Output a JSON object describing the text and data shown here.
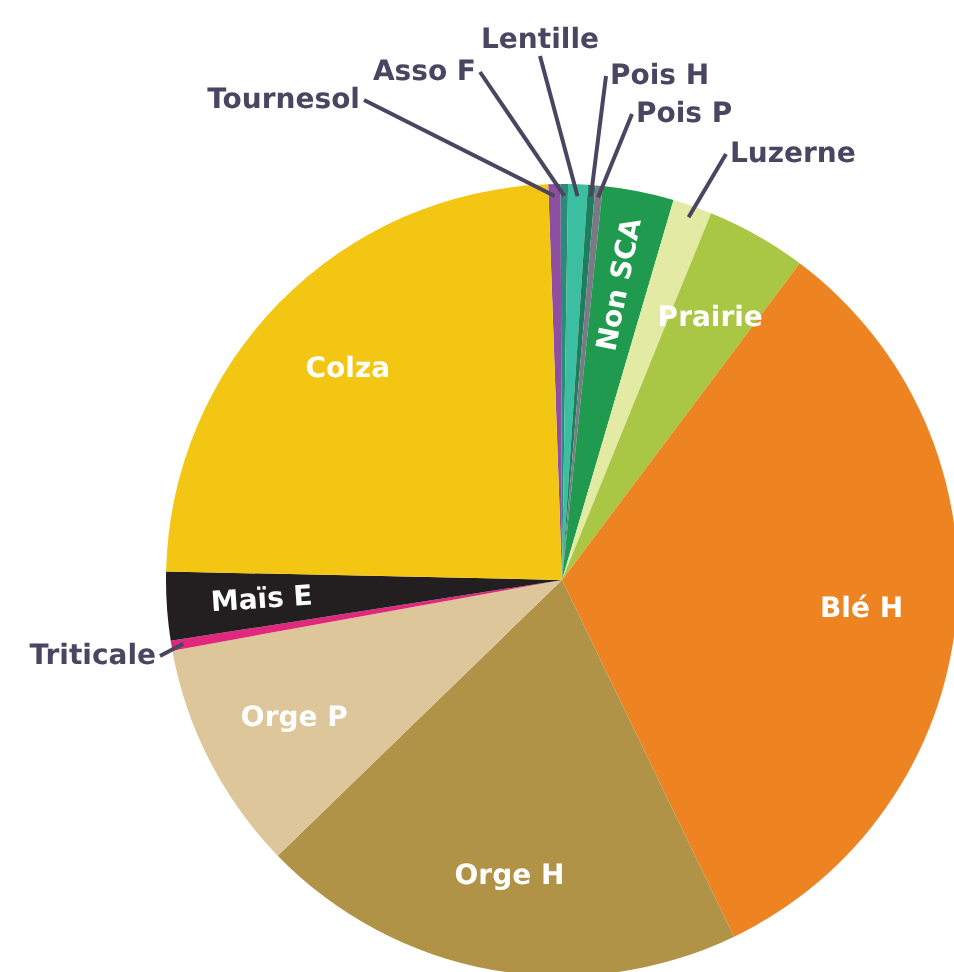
{
  "chart_data": {
    "type": "pie",
    "categories": [
      "Tournesol",
      "Asso F",
      "Lentille",
      "Pois H",
      "Pois P",
      "Non SCA",
      "Luzerne",
      "Prairie",
      "Blé H",
      "Orge H",
      "Orge P",
      "Triticale",
      "Maïs E",
      "Colza"
    ],
    "values": [
      0.5,
      0.3,
      0.8,
      0.3,
      0.3,
      2.9,
      1.6,
      4.1,
      32.6,
      19.9,
      9.4,
      0.4,
      2.8,
      24.1
    ],
    "colors": [
      "#8e4fa0",
      "#2b8a78",
      "#3cbfa0",
      "#1e7d5c",
      "#7a7a86",
      "#1f9a4e",
      "#e3eaa4",
      "#a9c745",
      "#ee8322",
      "#b09347",
      "#dcc69a",
      "#e0287d",
      "#231f20",
      "#f4c614"
    ]
  }
}
